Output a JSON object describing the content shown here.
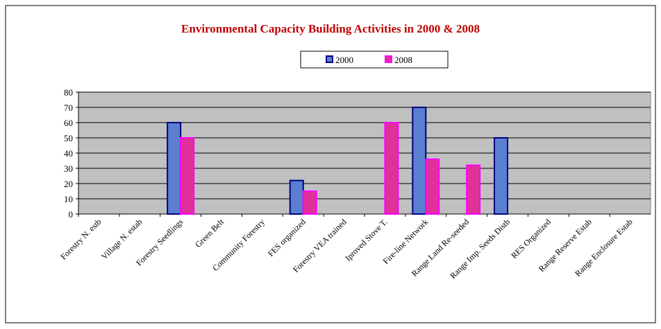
{
  "chart_data": {
    "type": "bar",
    "title": "Environmental Capacity Building Activities in 2000 & 2008",
    "categories": [
      "Forestry N. estb",
      "Village N. estab",
      "Forestry Seedlings",
      "Green Belt",
      "Community Forestry",
      "FES organized",
      "Forestry VEA trained",
      "Iproved Stove T.",
      "Fire-line Network",
      "Range Land Re-seeded",
      "Range Imp. Seeds Distb",
      "RES Organized",
      "Range Reserve Estab",
      "Range Enclosure Estab"
    ],
    "series": [
      {
        "name": "2000",
        "color": "#5b7fd0",
        "values": [
          0,
          0,
          60,
          0,
          0,
          22,
          0,
          0,
          70,
          0,
          50,
          0,
          0,
          0
        ]
      },
      {
        "name": "2008",
        "color": "#e0309a",
        "values": [
          0,
          0,
          50,
          0,
          0,
          15,
          0,
          60,
          36,
          32,
          0,
          0,
          0,
          0
        ]
      }
    ],
    "ylim": [
      0,
      80
    ],
    "yticks": [
      0,
      10,
      20,
      30,
      40,
      50,
      60,
      70,
      80
    ],
    "grid": true
  }
}
